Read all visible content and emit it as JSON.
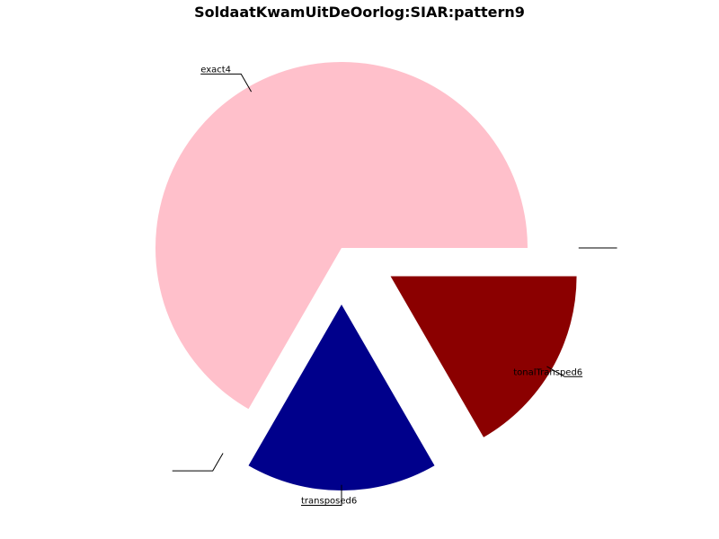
{
  "chart_data": {
    "type": "pie",
    "title": "SoldaatKwamUitDeOorlog:SIAR:pattern9",
    "slices": [
      {
        "label": "exact4",
        "value": 4,
        "color": "#FFC0CB",
        "exploded": false
      },
      {
        "label": "",
        "value": 0,
        "color": "#FFFFFF",
        "exploded": true
      },
      {
        "label": "transposed6",
        "value": 1,
        "color": "#00008B",
        "exploded": true
      },
      {
        "label": "tonalTransped6",
        "value": 1,
        "color": "#8B0000",
        "exploded": true
      },
      {
        "label": "",
        "value": 0,
        "color": "#FFFFFF",
        "exploded": true
      }
    ]
  }
}
